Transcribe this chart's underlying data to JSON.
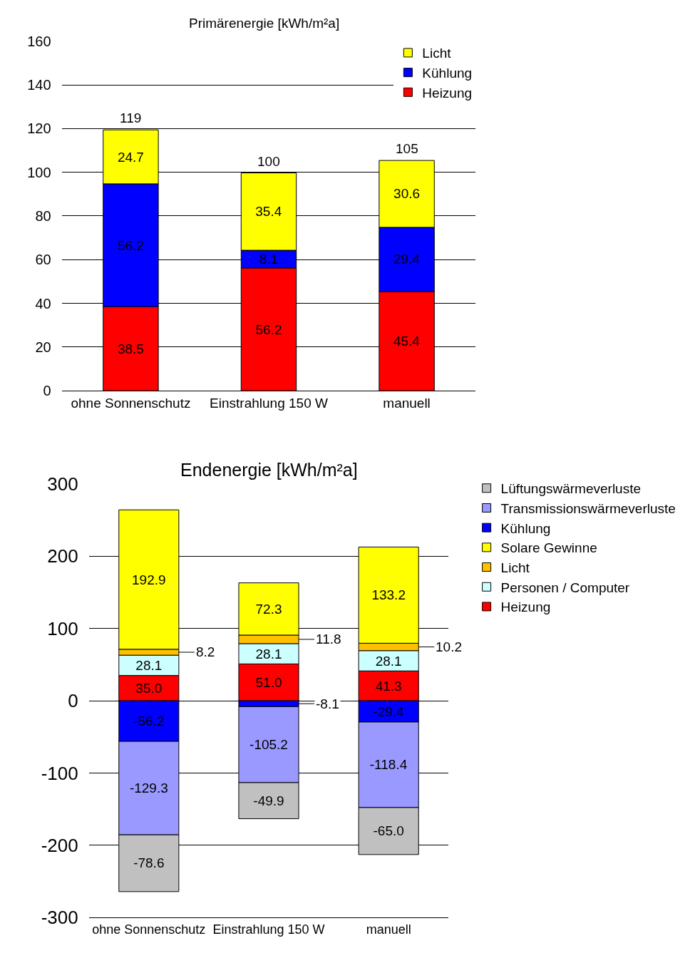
{
  "chart_data": [
    {
      "type": "bar",
      "title": "Primärenergie [kWh/m²a]",
      "stacked": true,
      "categories": [
        "ohne Sonnenschutz",
        "Einstrahlung 150 W",
        "manuell"
      ],
      "series": [
        {
          "name": "Heizung",
          "color": "#ff0000",
          "values": [
            38.5,
            56.2,
            45.4
          ]
        },
        {
          "name": "Kühlung",
          "color": "#0000ff",
          "values": [
            56.2,
            8.1,
            29.4
          ]
        },
        {
          "name": "Licht",
          "color": "#ffff00",
          "values": [
            24.7,
            35.4,
            30.6
          ]
        }
      ],
      "totals": [
        "119",
        "100",
        "105"
      ],
      "data_labels": true,
      "ylim": [
        0,
        160
      ],
      "yticks": [
        0,
        20,
        40,
        60,
        80,
        100,
        120,
        140,
        160
      ],
      "grid": "y",
      "legend": "top right"
    },
    {
      "type": "bar",
      "title": "Endenergie [kWh/m²a]",
      "stacked": true,
      "categories": [
        "ohne Sonnenschutz",
        "Einstrahlung 150 W",
        "manuell"
      ],
      "series": [
        {
          "name": "Heizung",
          "color": "#ff0000",
          "values": [
            35.0,
            51.0,
            41.3
          ],
          "value_labels": [
            "35.0",
            "51.0",
            "41.3"
          ]
        },
        {
          "name": "Personen / Computer",
          "color": "#ccffff",
          "values": [
            28.1,
            28.1,
            28.1
          ],
          "value_labels": [
            "28.1",
            "28.1",
            "28.1"
          ]
        },
        {
          "name": "Licht",
          "color": "#ffc000",
          "values": [
            8.2,
            11.8,
            10.2
          ],
          "value_labels": [
            "8.2",
            "11.8",
            "10.2"
          ]
        },
        {
          "name": "Solare Gewinne",
          "color": "#ffff00",
          "values": [
            192.9,
            72.3,
            133.2
          ],
          "value_labels": [
            "192.9",
            "72.3",
            "133.2"
          ]
        },
        {
          "name": "Kühlung",
          "color": "#0000ff",
          "values": [
            -56.2,
            -8.1,
            -29.4
          ],
          "value_labels": [
            "-56.2",
            "-8.1",
            "-29.4"
          ]
        },
        {
          "name": "Transmissionswärmeverluste",
          "color": "#9999ff",
          "values": [
            -129.3,
            -105.2,
            -118.4
          ],
          "value_labels": [
            "-129.3",
            "-105.2",
            "-118.4"
          ]
        },
        {
          "name": "Lüftungswärmeverluste",
          "color": "#c0c0c0",
          "values": [
            -78.6,
            -49.9,
            -65.0
          ],
          "value_labels": [
            "-78.6",
            "-49.9",
            "-65.0"
          ]
        }
      ],
      "ylim": [
        -300,
        300
      ],
      "yticks": [
        -300,
        -200,
        -100,
        0,
        100,
        200,
        300
      ],
      "grid": "y",
      "legend": "right"
    }
  ]
}
